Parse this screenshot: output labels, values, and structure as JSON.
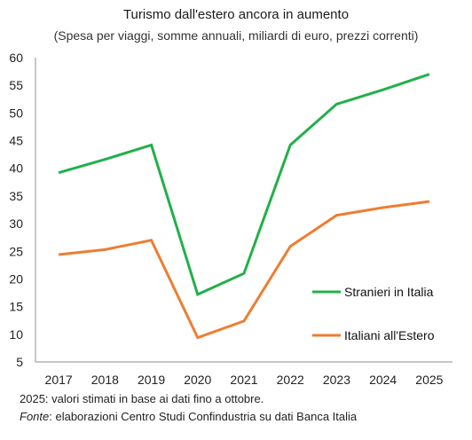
{
  "chart_data": {
    "type": "line",
    "title": "Turismo dall'estero ancora in aumento",
    "subtitle": "(Spesa per viaggi, somme annuali, miliardi di euro, prezzi correnti)",
    "categories": [
      "2017",
      "2018",
      "2019",
      "2020",
      "2021",
      "2022",
      "2023",
      "2024",
      "2025"
    ],
    "ylim": [
      5,
      60
    ],
    "yticks": [
      "5",
      "10",
      "15",
      "20",
      "25",
      "30",
      "35",
      "40",
      "45",
      "50",
      "55",
      "60"
    ],
    "grid": false,
    "legend_position": "bottom-right, inside plot",
    "series": [
      {
        "name": "Stranieri in Italia",
        "color": "#22b04a",
        "values": [
          39.2,
          41.6,
          44.2,
          17.2,
          21.0,
          44.2,
          51.6,
          54.2,
          57.0
        ]
      },
      {
        "name": "Italiani all'Estero",
        "color": "#ee7d31",
        "values": [
          24.4,
          25.3,
          27.0,
          9.4,
          12.4,
          25.9,
          31.5,
          32.9,
          34.0
        ]
      }
    ]
  },
  "notes": {
    "line1": "2025: valori stimati in base ai dati fino a ottobre.",
    "source_label": "Fonte",
    "source_text": ": elaborazioni Centro Studi Confindustria su dati Banca Italia"
  }
}
